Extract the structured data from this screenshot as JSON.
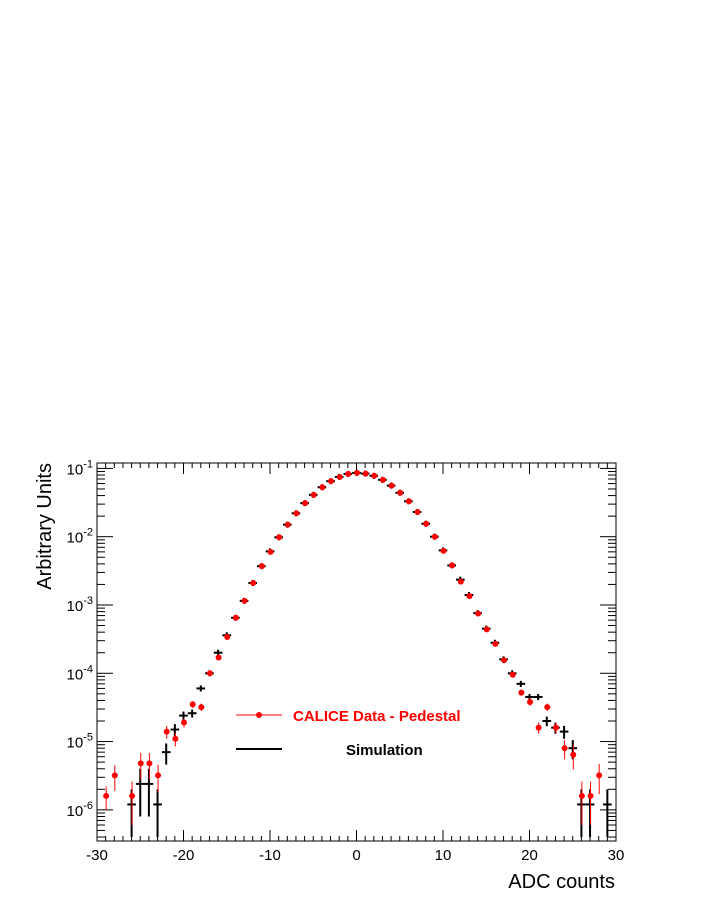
{
  "chart_data": {
    "type": "scatter",
    "title": "",
    "xlabel": "ADC counts",
    "ylabel": "Arbitrary Units",
    "xlim": [
      -30,
      30
    ],
    "ylim": [
      3.5e-07,
      0.12
    ],
    "yscale": "log",
    "grid": false,
    "legend_position": "bottom-center",
    "x_ticks": [
      "-30",
      "-20",
      "-10",
      "0",
      "10",
      "20",
      "30"
    ],
    "y_ticks": [
      {
        "value": 1e-06,
        "base": "10",
        "exp": "-6"
      },
      {
        "value": 1e-05,
        "base": "10",
        "exp": "-5"
      },
      {
        "value": 0.0001,
        "base": "10",
        "exp": "-4"
      },
      {
        "value": 0.001,
        "base": "10",
        "exp": "-3"
      },
      {
        "value": 0.01,
        "base": "10",
        "exp": "-2"
      },
      {
        "value": 0.1,
        "base": "10",
        "exp": "-1"
      }
    ],
    "series": [
      {
        "name": "CALICE Data - Pedestal",
        "color": "#ff0000",
        "marker": "circle",
        "points": [
          {
            "x": -29,
            "y": 1.6e-06,
            "err": 6e-07
          },
          {
            "x": -28,
            "y": 3.2e-06,
            "err": 1.3e-06
          },
          {
            "x": -26,
            "y": 1.6e-06,
            "err": 1e-06
          },
          {
            "x": -25,
            "y": 4.8e-06,
            "err": 2e-06
          },
          {
            "x": -24,
            "y": 4.8e-06,
            "err": 2e-06
          },
          {
            "x": -23,
            "y": 3.2e-06,
            "err": 1.4e-06
          },
          {
            "x": -22,
            "y": 1.4e-05,
            "err": 3e-06
          },
          {
            "x": -21,
            "y": 1.1e-05,
            "err": 2.5e-06
          },
          {
            "x": -20,
            "y": 1.9e-05,
            "err": 3e-06
          },
          {
            "x": -19,
            "y": 3.5e-05,
            "err": 4e-06
          },
          {
            "x": -18,
            "y": 3.2e-05,
            "err": 4e-06
          },
          {
            "x": -17,
            "y": 0.0001,
            "err": 6e-06
          },
          {
            "x": -16,
            "y": 0.00017,
            "err": 8e-06
          },
          {
            "x": -15,
            "y": 0.00034,
            "err": 1e-05
          },
          {
            "x": -14,
            "y": 0.00065
          },
          {
            "x": -13,
            "y": 0.00115
          },
          {
            "x": -12,
            "y": 0.0021
          },
          {
            "x": -11,
            "y": 0.0037
          },
          {
            "x": -10,
            "y": 0.006
          },
          {
            "x": -9,
            "y": 0.0098
          },
          {
            "x": -8,
            "y": 0.015
          },
          {
            "x": -7,
            "y": 0.022
          },
          {
            "x": -6,
            "y": 0.031
          },
          {
            "x": -5,
            "y": 0.041
          },
          {
            "x": -4,
            "y": 0.053
          },
          {
            "x": -3,
            "y": 0.065
          },
          {
            "x": -2,
            "y": 0.075
          },
          {
            "x": -1,
            "y": 0.083
          },
          {
            "x": 0,
            "y": 0.086
          },
          {
            "x": 1,
            "y": 0.084
          },
          {
            "x": 2,
            "y": 0.078
          },
          {
            "x": 3,
            "y": 0.068
          },
          {
            "x": 4,
            "y": 0.056
          },
          {
            "x": 5,
            "y": 0.044
          },
          {
            "x": 6,
            "y": 0.033
          },
          {
            "x": 7,
            "y": 0.023
          },
          {
            "x": 8,
            "y": 0.0155
          },
          {
            "x": 9,
            "y": 0.01
          },
          {
            "x": 10,
            "y": 0.0062
          },
          {
            "x": 11,
            "y": 0.0038
          },
          {
            "x": 12,
            "y": 0.0022
          },
          {
            "x": 13,
            "y": 0.00135
          },
          {
            "x": 14,
            "y": 0.00075
          },
          {
            "x": 15,
            "y": 0.00044,
            "err": 1.2e-05
          },
          {
            "x": 16,
            "y": 0.00027,
            "err": 1e-05
          },
          {
            "x": 17,
            "y": 0.000155,
            "err": 8e-06
          },
          {
            "x": 18,
            "y": 9.5e-05,
            "err": 6e-06
          },
          {
            "x": 19,
            "y": 5.2e-05,
            "err": 5e-06
          },
          {
            "x": 20,
            "y": 3.8e-05,
            "err": 4.5e-06
          },
          {
            "x": 21,
            "y": 1.6e-05,
            "err": 3e-06
          },
          {
            "x": 22,
            "y": 3.2e-05,
            "err": 4e-06
          },
          {
            "x": 23,
            "y": 1.6e-05,
            "err": 3e-06
          },
          {
            "x": 24,
            "y": 8e-06,
            "err": 2.5e-06
          },
          {
            "x": 25,
            "y": 6.4e-06,
            "err": 2.5e-06
          },
          {
            "x": 26,
            "y": 1.6e-06,
            "err": 1e-06
          },
          {
            "x": 27,
            "y": 1.6e-06,
            "err": 1e-06
          },
          {
            "x": 28,
            "y": 3.2e-06,
            "err": 1.5e-06
          }
        ]
      },
      {
        "name": "Simulation",
        "color": "#000000",
        "marker": "cross",
        "points": [
          {
            "x": -26,
            "y": 1.2e-06,
            "err": 8e-07
          },
          {
            "x": -25,
            "y": 2.4e-06,
            "err": 1.6e-06
          },
          {
            "x": -24,
            "y": 2.4e-06,
            "err": 1.6e-06
          },
          {
            "x": -23,
            "y": 1.2e-06,
            "err": 8e-07
          },
          {
            "x": -22,
            "y": 7e-06,
            "err": 2.4e-06
          },
          {
            "x": -21,
            "y": 1.5e-05,
            "err": 3e-06
          },
          {
            "x": -20,
            "y": 2.4e-05,
            "err": 3.5e-06
          },
          {
            "x": -19,
            "y": 2.6e-05,
            "err": 3.5e-06
          },
          {
            "x": -18,
            "y": 6e-05,
            "err": 5e-06
          },
          {
            "x": -17,
            "y": 0.0001,
            "err": 6e-06
          },
          {
            "x": -16,
            "y": 0.0002,
            "err": 9e-06
          },
          {
            "x": -15,
            "y": 0.00036,
            "err": 1.1e-05
          },
          {
            "x": -14,
            "y": 0.00065
          },
          {
            "x": -13,
            "y": 0.00115
          },
          {
            "x": -12,
            "y": 0.0021
          },
          {
            "x": -11,
            "y": 0.0037
          },
          {
            "x": -10,
            "y": 0.0061
          },
          {
            "x": -9,
            "y": 0.0098
          },
          {
            "x": -8,
            "y": 0.015
          },
          {
            "x": -7,
            "y": 0.022
          },
          {
            "x": -6,
            "y": 0.031
          },
          {
            "x": -5,
            "y": 0.041
          },
          {
            "x": -4,
            "y": 0.053
          },
          {
            "x": -3,
            "y": 0.065
          },
          {
            "x": -2,
            "y": 0.075
          },
          {
            "x": -1,
            "y": 0.083
          },
          {
            "x": 0,
            "y": 0.086
          },
          {
            "x": 1,
            "y": 0.084
          },
          {
            "x": 2,
            "y": 0.078
          },
          {
            "x": 3,
            "y": 0.068
          },
          {
            "x": 4,
            "y": 0.056
          },
          {
            "x": 5,
            "y": 0.044
          },
          {
            "x": 6,
            "y": 0.033
          },
          {
            "x": 7,
            "y": 0.023
          },
          {
            "x": 8,
            "y": 0.0155
          },
          {
            "x": 9,
            "y": 0.01
          },
          {
            "x": 10,
            "y": 0.0063
          },
          {
            "x": 11,
            "y": 0.0038
          },
          {
            "x": 12,
            "y": 0.00235
          },
          {
            "x": 13,
            "y": 0.0014
          },
          {
            "x": 14,
            "y": 0.00076
          },
          {
            "x": 15,
            "y": 0.00045,
            "err": 1.2e-05
          },
          {
            "x": 16,
            "y": 0.00028,
            "err": 1e-05
          },
          {
            "x": 17,
            "y": 0.00016,
            "err": 8e-06
          },
          {
            "x": 18,
            "y": 0.0001,
            "err": 6e-06
          },
          {
            "x": 19,
            "y": 7e-05,
            "err": 5.5e-06
          },
          {
            "x": 20,
            "y": 4.5e-05,
            "err": 4.5e-06
          },
          {
            "x": 21,
            "y": 4.5e-05,
            "err": 4.5e-06
          },
          {
            "x": 22,
            "y": 2e-05,
            "err": 3.2e-06
          },
          {
            "x": 23,
            "y": 1.6e-05,
            "err": 3e-06
          },
          {
            "x": 24,
            "y": 1.4e-05,
            "err": 3e-06
          },
          {
            "x": 25,
            "y": 8e-06,
            "err": 2.5e-06
          },
          {
            "x": 26,
            "y": 1.2e-06,
            "err": 8e-07
          },
          {
            "x": 27,
            "y": 1.2e-06,
            "err": 8e-07
          },
          {
            "x": 29,
            "y": 1.2e-06,
            "err": 8e-07
          }
        ]
      }
    ]
  }
}
